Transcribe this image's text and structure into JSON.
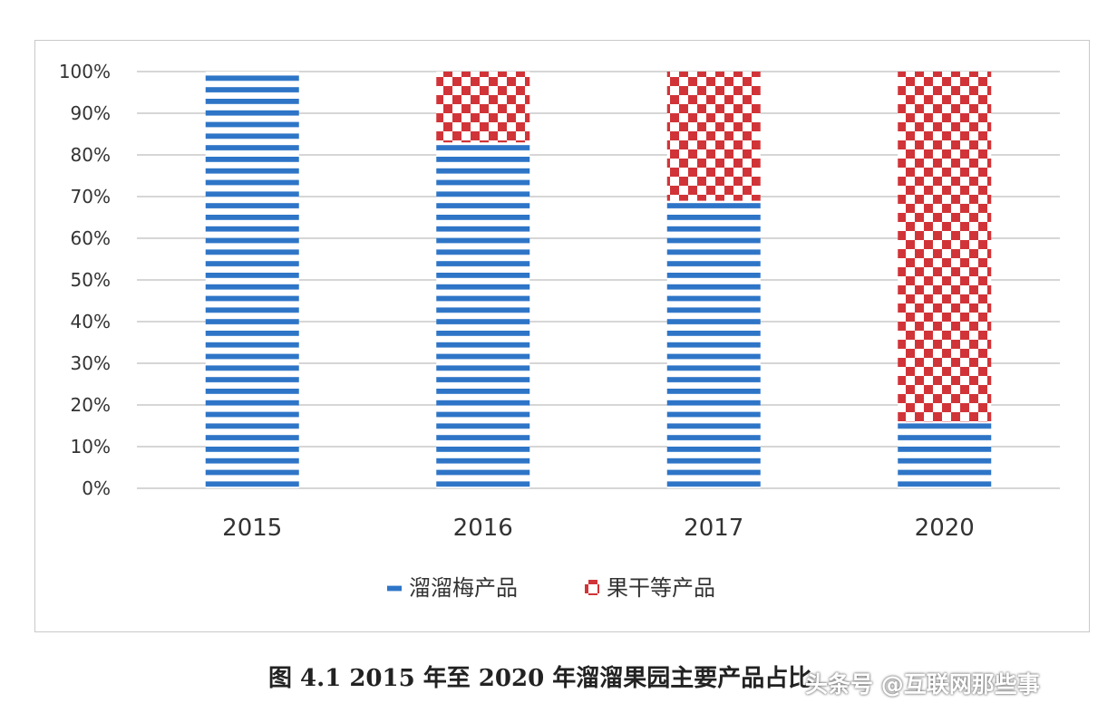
{
  "chart_data": {
    "type": "bar",
    "stacked": true,
    "categories": [
      "2015",
      "2016",
      "2017",
      "2020"
    ],
    "series": [
      {
        "name": "溜溜梅产品",
        "values": [
          100,
          83,
          69,
          16
        ],
        "color": "#2e75c7",
        "pattern": "horizontal-stripes"
      },
      {
        "name": "果干等产品",
        "values": [
          0,
          17,
          31,
          84
        ],
        "color": "#d13438",
        "pattern": "checkerboard"
      }
    ],
    "yticks": [
      "0%",
      "10%",
      "20%",
      "30%",
      "40%",
      "50%",
      "60%",
      "70%",
      "80%",
      "90%",
      "100%"
    ],
    "ylim": [
      0,
      100
    ],
    "grid": true,
    "legend_position": "bottom"
  },
  "caption": "图 4.1 2015 年至 2020 年溜溜果园主要产品占比",
  "watermark": "头条号 @互联网那些事"
}
